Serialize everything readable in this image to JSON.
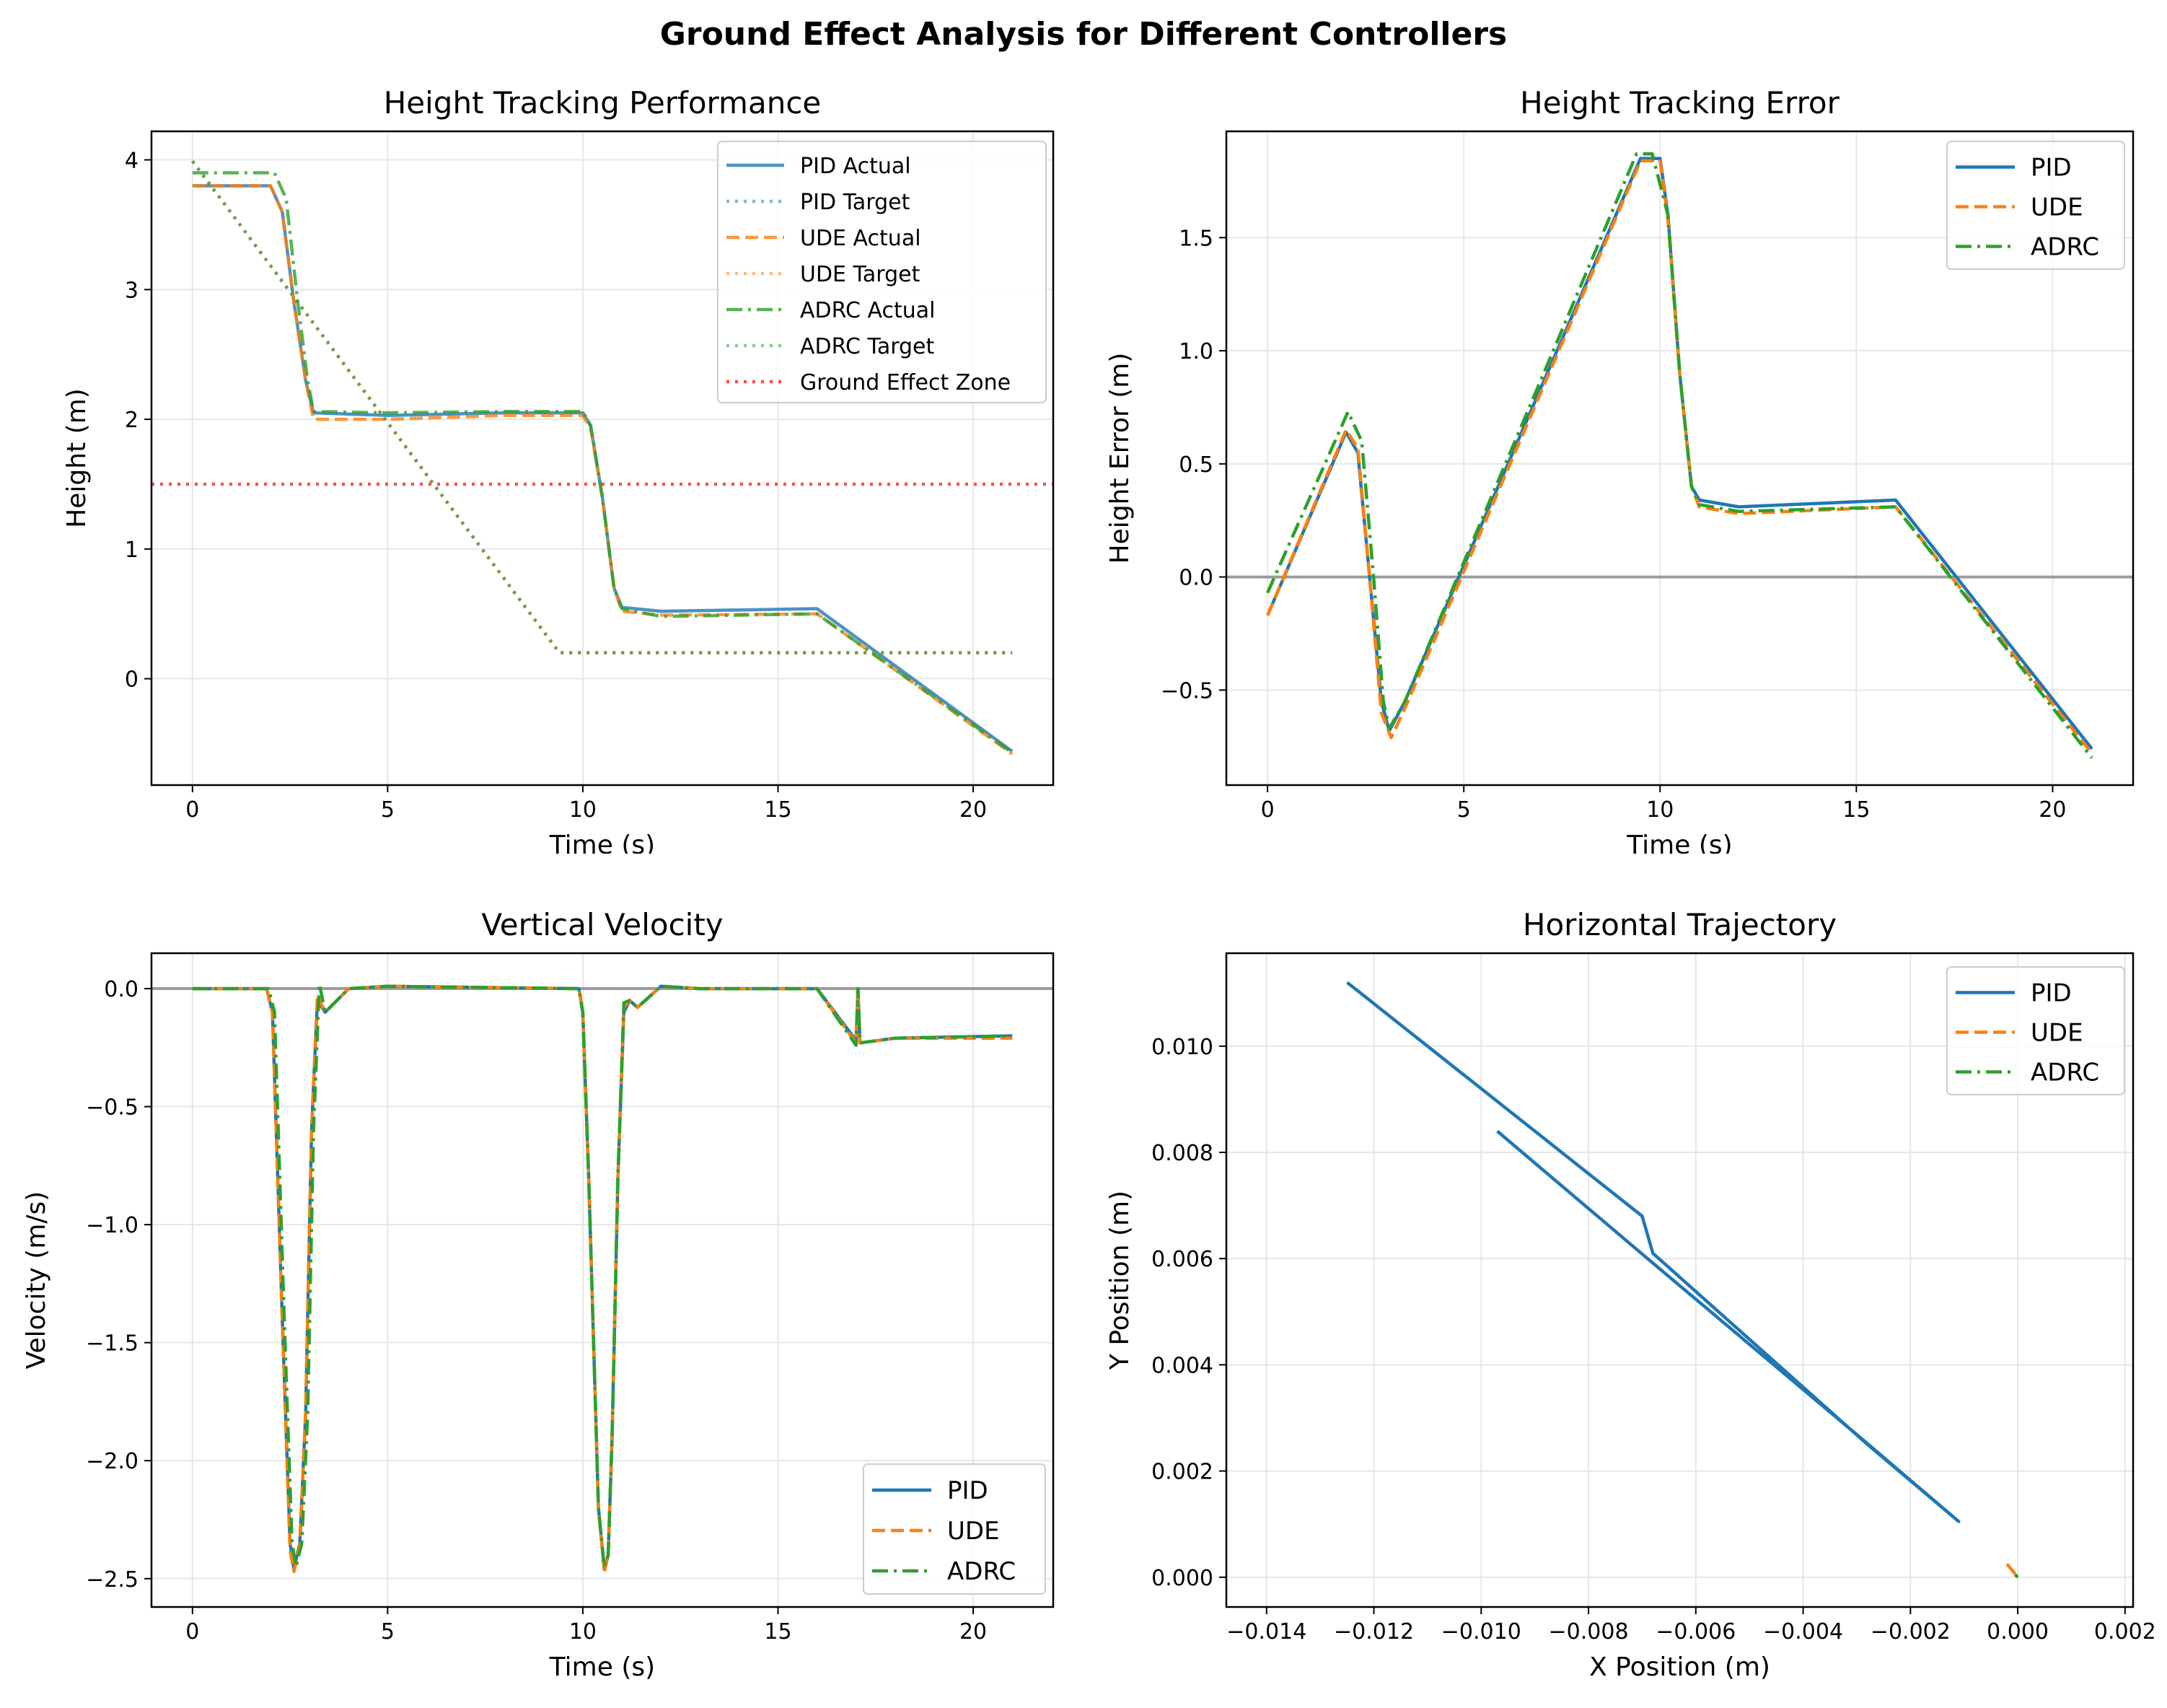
{
  "title": "Ground Effect Analysis for Different Controllers",
  "colors": {
    "pid": "#1f77b4",
    "ude": "#ff7f0e",
    "adrc": "#2ca02c",
    "zone": "#ff0000",
    "zero": "#888888"
  },
  "chart_data": [
    {
      "id": "height",
      "type": "line",
      "title": "Height Tracking Performance",
      "xlabel": "Time (s)",
      "ylabel": "Height (m)",
      "xlim": [
        -1.05,
        22.05
      ],
      "ylim": [
        -0.82,
        4.22
      ],
      "xticks": [
        0,
        5,
        10,
        15,
        20
      ],
      "yticks": [
        0,
        1,
        2,
        3,
        4
      ],
      "grid": true,
      "legend_position": "top-right",
      "series": [
        {
          "name": "PID Actual",
          "color": "#1f77b4",
          "style": "solid",
          "opacity": 0.8,
          "x": [
            0,
            2.0,
            2.3,
            2.6,
            2.9,
            3.1,
            5,
            8,
            10,
            10.2,
            10.5,
            10.8,
            11.0,
            12,
            16,
            21
          ],
          "y": [
            3.8,
            3.8,
            3.6,
            2.9,
            2.3,
            2.05,
            2.03,
            2.05,
            2.05,
            1.95,
            1.4,
            0.7,
            0.55,
            0.52,
            0.54,
            -0.56
          ]
        },
        {
          "name": "PID Target",
          "color": "#1f77b4",
          "style": "dotted",
          "opacity": 0.55,
          "x": [
            0,
            9.4,
            21
          ],
          "y": [
            3.99,
            0.2,
            0.2
          ]
        },
        {
          "name": "UDE Actual",
          "color": "#ff7f0e",
          "style": "dashed",
          "opacity": 0.8,
          "x": [
            0,
            2.0,
            2.3,
            2.6,
            2.9,
            3.1,
            5,
            8,
            10,
            10.2,
            10.5,
            10.8,
            11.0,
            12,
            16,
            21
          ],
          "y": [
            3.8,
            3.8,
            3.6,
            2.9,
            2.3,
            2.0,
            2.0,
            2.03,
            2.03,
            1.93,
            1.4,
            0.7,
            0.52,
            0.49,
            0.5,
            -0.58
          ]
        },
        {
          "name": "UDE Target",
          "color": "#ff7f0e",
          "style": "dotted",
          "opacity": 0.55,
          "x": [
            0,
            9.4,
            21
          ],
          "y": [
            3.99,
            0.2,
            0.2
          ]
        },
        {
          "name": "ADRC Actual",
          "color": "#2ca02c",
          "style": "dashdot",
          "opacity": 0.8,
          "x": [
            0,
            2.1,
            2.4,
            2.7,
            2.95,
            3.1,
            5,
            8,
            10,
            10.2,
            10.5,
            10.8,
            11.0,
            12,
            16,
            21
          ],
          "y": [
            3.9,
            3.9,
            3.7,
            2.9,
            2.3,
            2.06,
            2.05,
            2.06,
            2.06,
            1.95,
            1.4,
            0.7,
            0.54,
            0.48,
            0.5,
            -0.57
          ]
        },
        {
          "name": "ADRC Target",
          "color": "#2ca02c",
          "style": "dotted",
          "opacity": 0.55,
          "x": [
            0,
            9.4,
            21
          ],
          "y": [
            3.99,
            0.2,
            0.2
          ]
        },
        {
          "name": "Ground Effect Zone",
          "color": "#ff0000",
          "style": "dotted",
          "opacity": 0.7,
          "x": [
            -1.05,
            22.05
          ],
          "y": [
            1.5,
            1.5
          ]
        }
      ]
    },
    {
      "id": "error",
      "type": "line",
      "title": "Height Tracking Error",
      "xlabel": "Time (s)",
      "ylabel": "Height Error (m)",
      "xlim": [
        -1.05,
        22.05
      ],
      "ylim": [
        -0.92,
        1.97
      ],
      "xticks": [
        0,
        5,
        10,
        15,
        20
      ],
      "yticks": [
        -0.5,
        0.0,
        0.5,
        1.0,
        1.5
      ],
      "ytick_labels": [
        "−0.5",
        "0.0",
        "0.5",
        "1.0",
        "1.5"
      ],
      "grid": true,
      "zero_line": 0,
      "legend_position": "top-right",
      "series": [
        {
          "name": "PID",
          "color": "#1f77b4",
          "style": "solid",
          "x": [
            0,
            2.0,
            2.3,
            2.6,
            2.9,
            3.1,
            3.5,
            9.5,
            10.0,
            10.2,
            10.5,
            10.8,
            11.0,
            12,
            16,
            21
          ],
          "y": [
            -0.17,
            0.64,
            0.55,
            0.0,
            -0.55,
            -0.68,
            -0.55,
            1.85,
            1.85,
            1.6,
            0.9,
            0.4,
            0.34,
            0.31,
            0.34,
            -0.76
          ]
        },
        {
          "name": "UDE",
          "color": "#ff7f0e",
          "style": "dashed",
          "x": [
            0,
            2.0,
            2.3,
            2.6,
            2.9,
            3.15,
            3.5,
            9.5,
            10.0,
            10.2,
            10.5,
            10.8,
            11.0,
            12,
            16,
            21
          ],
          "y": [
            -0.17,
            0.65,
            0.57,
            0.0,
            -0.6,
            -0.71,
            -0.58,
            1.84,
            1.84,
            1.58,
            0.9,
            0.4,
            0.31,
            0.28,
            0.31,
            -0.78
          ]
        },
        {
          "name": "ADRC",
          "color": "#2ca02c",
          "style": "dashdot",
          "x": [
            0,
            2.05,
            2.4,
            2.7,
            2.95,
            3.1,
            3.5,
            9.4,
            9.8,
            10.2,
            10.5,
            10.8,
            11.0,
            12,
            16,
            21
          ],
          "y": [
            -0.07,
            0.73,
            0.6,
            0.0,
            -0.55,
            -0.67,
            -0.55,
            1.87,
            1.87,
            1.6,
            0.9,
            0.4,
            0.32,
            0.29,
            0.31,
            -0.8
          ]
        }
      ]
    },
    {
      "id": "velocity",
      "type": "line",
      "title": "Vertical Velocity",
      "xlabel": "Time (s)",
      "ylabel": "Velocity (m/s)",
      "xlim": [
        -1.05,
        22.05
      ],
      "ylim": [
        -2.62,
        0.15
      ],
      "xticks": [
        0,
        5,
        10,
        15,
        20
      ],
      "yticks": [
        -2.5,
        -2.0,
        -1.5,
        -1.0,
        -0.5,
        0.0
      ],
      "ytick_labels": [
        "−2.5",
        "−2.0",
        "−1.5",
        "−1.0",
        "−0.5",
        "0.0"
      ],
      "grid": true,
      "zero_line": 0,
      "legend_position": "bottom-right",
      "series": [
        {
          "name": "PID",
          "color": "#1f77b4",
          "style": "solid",
          "x": [
            0,
            1.9,
            2.05,
            2.3,
            2.5,
            2.6,
            2.75,
            2.9,
            3.05,
            3.2,
            3.4,
            4.0,
            5,
            9.9,
            10.0,
            10.15,
            10.4,
            10.55,
            10.65,
            10.75,
            10.9,
            11.05,
            11.2,
            11.4,
            12,
            13,
            16,
            17.0,
            17.05,
            17.1,
            18,
            21
          ],
          "y": [
            0,
            0,
            -0.1,
            -1.4,
            -2.35,
            -2.46,
            -2.35,
            -1.8,
            -0.6,
            -0.05,
            -0.1,
            0.0,
            0.01,
            0.0,
            -0.1,
            -0.8,
            -2.2,
            -2.46,
            -2.4,
            -1.9,
            -0.8,
            -0.1,
            -0.05,
            -0.08,
            0.01,
            0.0,
            0.0,
            -0.22,
            0.0,
            -0.23,
            -0.21,
            -0.2
          ]
        },
        {
          "name": "UDE",
          "color": "#ff7f0e",
          "style": "dashed",
          "x": [
            0,
            1.9,
            2.05,
            2.3,
            2.5,
            2.6,
            2.75,
            2.9,
            3.05,
            3.2,
            3.4,
            4.0,
            5,
            9.9,
            10.0,
            10.15,
            10.4,
            10.55,
            10.65,
            10.75,
            10.9,
            11.05,
            11.2,
            11.4,
            12,
            13,
            16,
            17.0,
            17.05,
            17.1,
            18,
            21
          ],
          "y": [
            0,
            0,
            -0.1,
            -1.4,
            -2.38,
            -2.47,
            -2.36,
            -1.8,
            -0.6,
            -0.03,
            -0.1,
            0.0,
            0.01,
            0.0,
            -0.1,
            -0.8,
            -2.2,
            -2.47,
            -2.4,
            -1.9,
            -0.8,
            -0.08,
            -0.05,
            -0.08,
            0.01,
            0.0,
            0.0,
            -0.23,
            0.0,
            -0.23,
            -0.21,
            -0.21
          ]
        },
        {
          "name": "ADRC",
          "color": "#2ca02c",
          "style": "dashdot",
          "x": [
            0,
            1.95,
            2.1,
            2.35,
            2.55,
            2.65,
            2.8,
            2.95,
            3.1,
            3.25,
            3.4,
            4.0,
            5,
            9.9,
            10.0,
            10.15,
            10.4,
            10.55,
            10.65,
            10.75,
            10.9,
            11.05,
            11.2,
            11.4,
            12,
            13,
            16,
            17.0,
            17.05,
            17.1,
            18,
            21
          ],
          "y": [
            0,
            0,
            -0.1,
            -1.4,
            -2.35,
            -2.45,
            -2.35,
            -1.8,
            -0.6,
            0.02,
            -0.1,
            0.0,
            0.01,
            0.0,
            -0.1,
            -0.8,
            -2.2,
            -2.45,
            -2.4,
            -1.9,
            -0.8,
            -0.06,
            -0.05,
            -0.08,
            0.01,
            0.0,
            0.0,
            -0.24,
            0.0,
            -0.23,
            -0.21,
            -0.2
          ]
        }
      ]
    },
    {
      "id": "trajectory",
      "type": "line",
      "title": "Horizontal Trajectory",
      "xlabel": "X Position (m)",
      "ylabel": "Y Position (m)",
      "xlim": [
        -0.01475,
        0.00215
      ],
      "ylim": [
        -0.00056,
        0.01175
      ],
      "xticks": [
        -0.014,
        -0.012,
        -0.01,
        -0.008,
        -0.006,
        -0.004,
        -0.002,
        0.0,
        0.002
      ],
      "xtick_labels": [
        "−0.014",
        "−0.012",
        "−0.010",
        "−0.008",
        "−0.006",
        "−0.004",
        "−0.002",
        "0.000",
        "0.002"
      ],
      "yticks": [
        0.0,
        0.002,
        0.004,
        0.006,
        0.008,
        0.01
      ],
      "ytick_labels": [
        "0.000",
        "0.002",
        "0.004",
        "0.006",
        "0.008",
        "0.010"
      ],
      "grid": true,
      "legend_position": "top-right",
      "series": [
        {
          "name": "PID",
          "color": "#1f77b4",
          "style": "solid",
          "x": [
            -0.0125,
            -0.0095,
            -0.007,
            -0.0068,
            -0.0028,
            -0.0011,
            -0.0029,
            -0.0069,
            -0.0097
          ],
          "y": [
            0.0112,
            0.0088,
            0.0068,
            0.0061,
            0.0025,
            0.00105,
            0.0026,
            0.006,
            0.0084
          ]
        },
        {
          "name": "UDE",
          "color": "#ff7f0e",
          "style": "dashed",
          "x": [
            -0.0002,
            0.0
          ],
          "y": [
            0.00025,
            0.0
          ]
        },
        {
          "name": "ADRC",
          "color": "#2ca02c",
          "style": "dashdot",
          "x": [
            -5e-05,
            0.0
          ],
          "y": [
            5e-05,
            0.0
          ]
        }
      ]
    }
  ]
}
